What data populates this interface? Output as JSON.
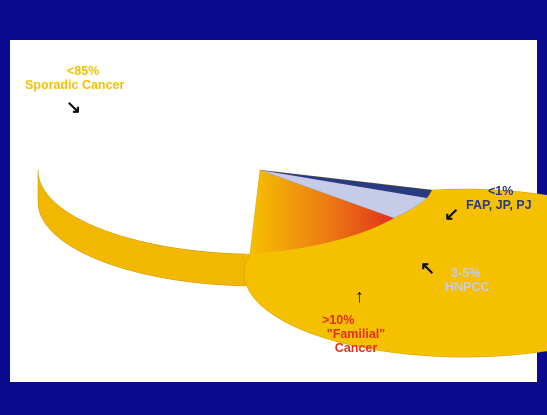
{
  "chart_data": {
    "type": "pie",
    "title": "",
    "slices": [
      {
        "percent": "<85%",
        "name": "Sporadic Cancer",
        "value": 82,
        "color": "#f5c000"
      },
      {
        "percent": ">10%",
        "name": "\"Familial\" Cancer",
        "value": 11,
        "color": "#e03020"
      },
      {
        "percent": "3-5%",
        "name": "HNPCC",
        "value": 4,
        "color": "#c6cbe8"
      },
      {
        "percent": "<1%",
        "name": "FAP, JP, PJ",
        "value": 1,
        "color": "#2a3a80"
      }
    ]
  },
  "labels": {
    "sporadic": {
      "line1": "<85%",
      "line2": "Sporadic Cancer",
      "color": "#f5c000"
    },
    "familial": {
      "line1": ">10%",
      "line2": "\"Familial\"",
      "line3": "Cancer",
      "color": "#e03020"
    },
    "hnpcc": {
      "line1": "3-5%",
      "line2": "HNPCC",
      "color": "#c6cbe8"
    },
    "fap": {
      "line1": "<1%",
      "line2": "FAP, JP, PJ",
      "color": "#2a3a80"
    }
  }
}
